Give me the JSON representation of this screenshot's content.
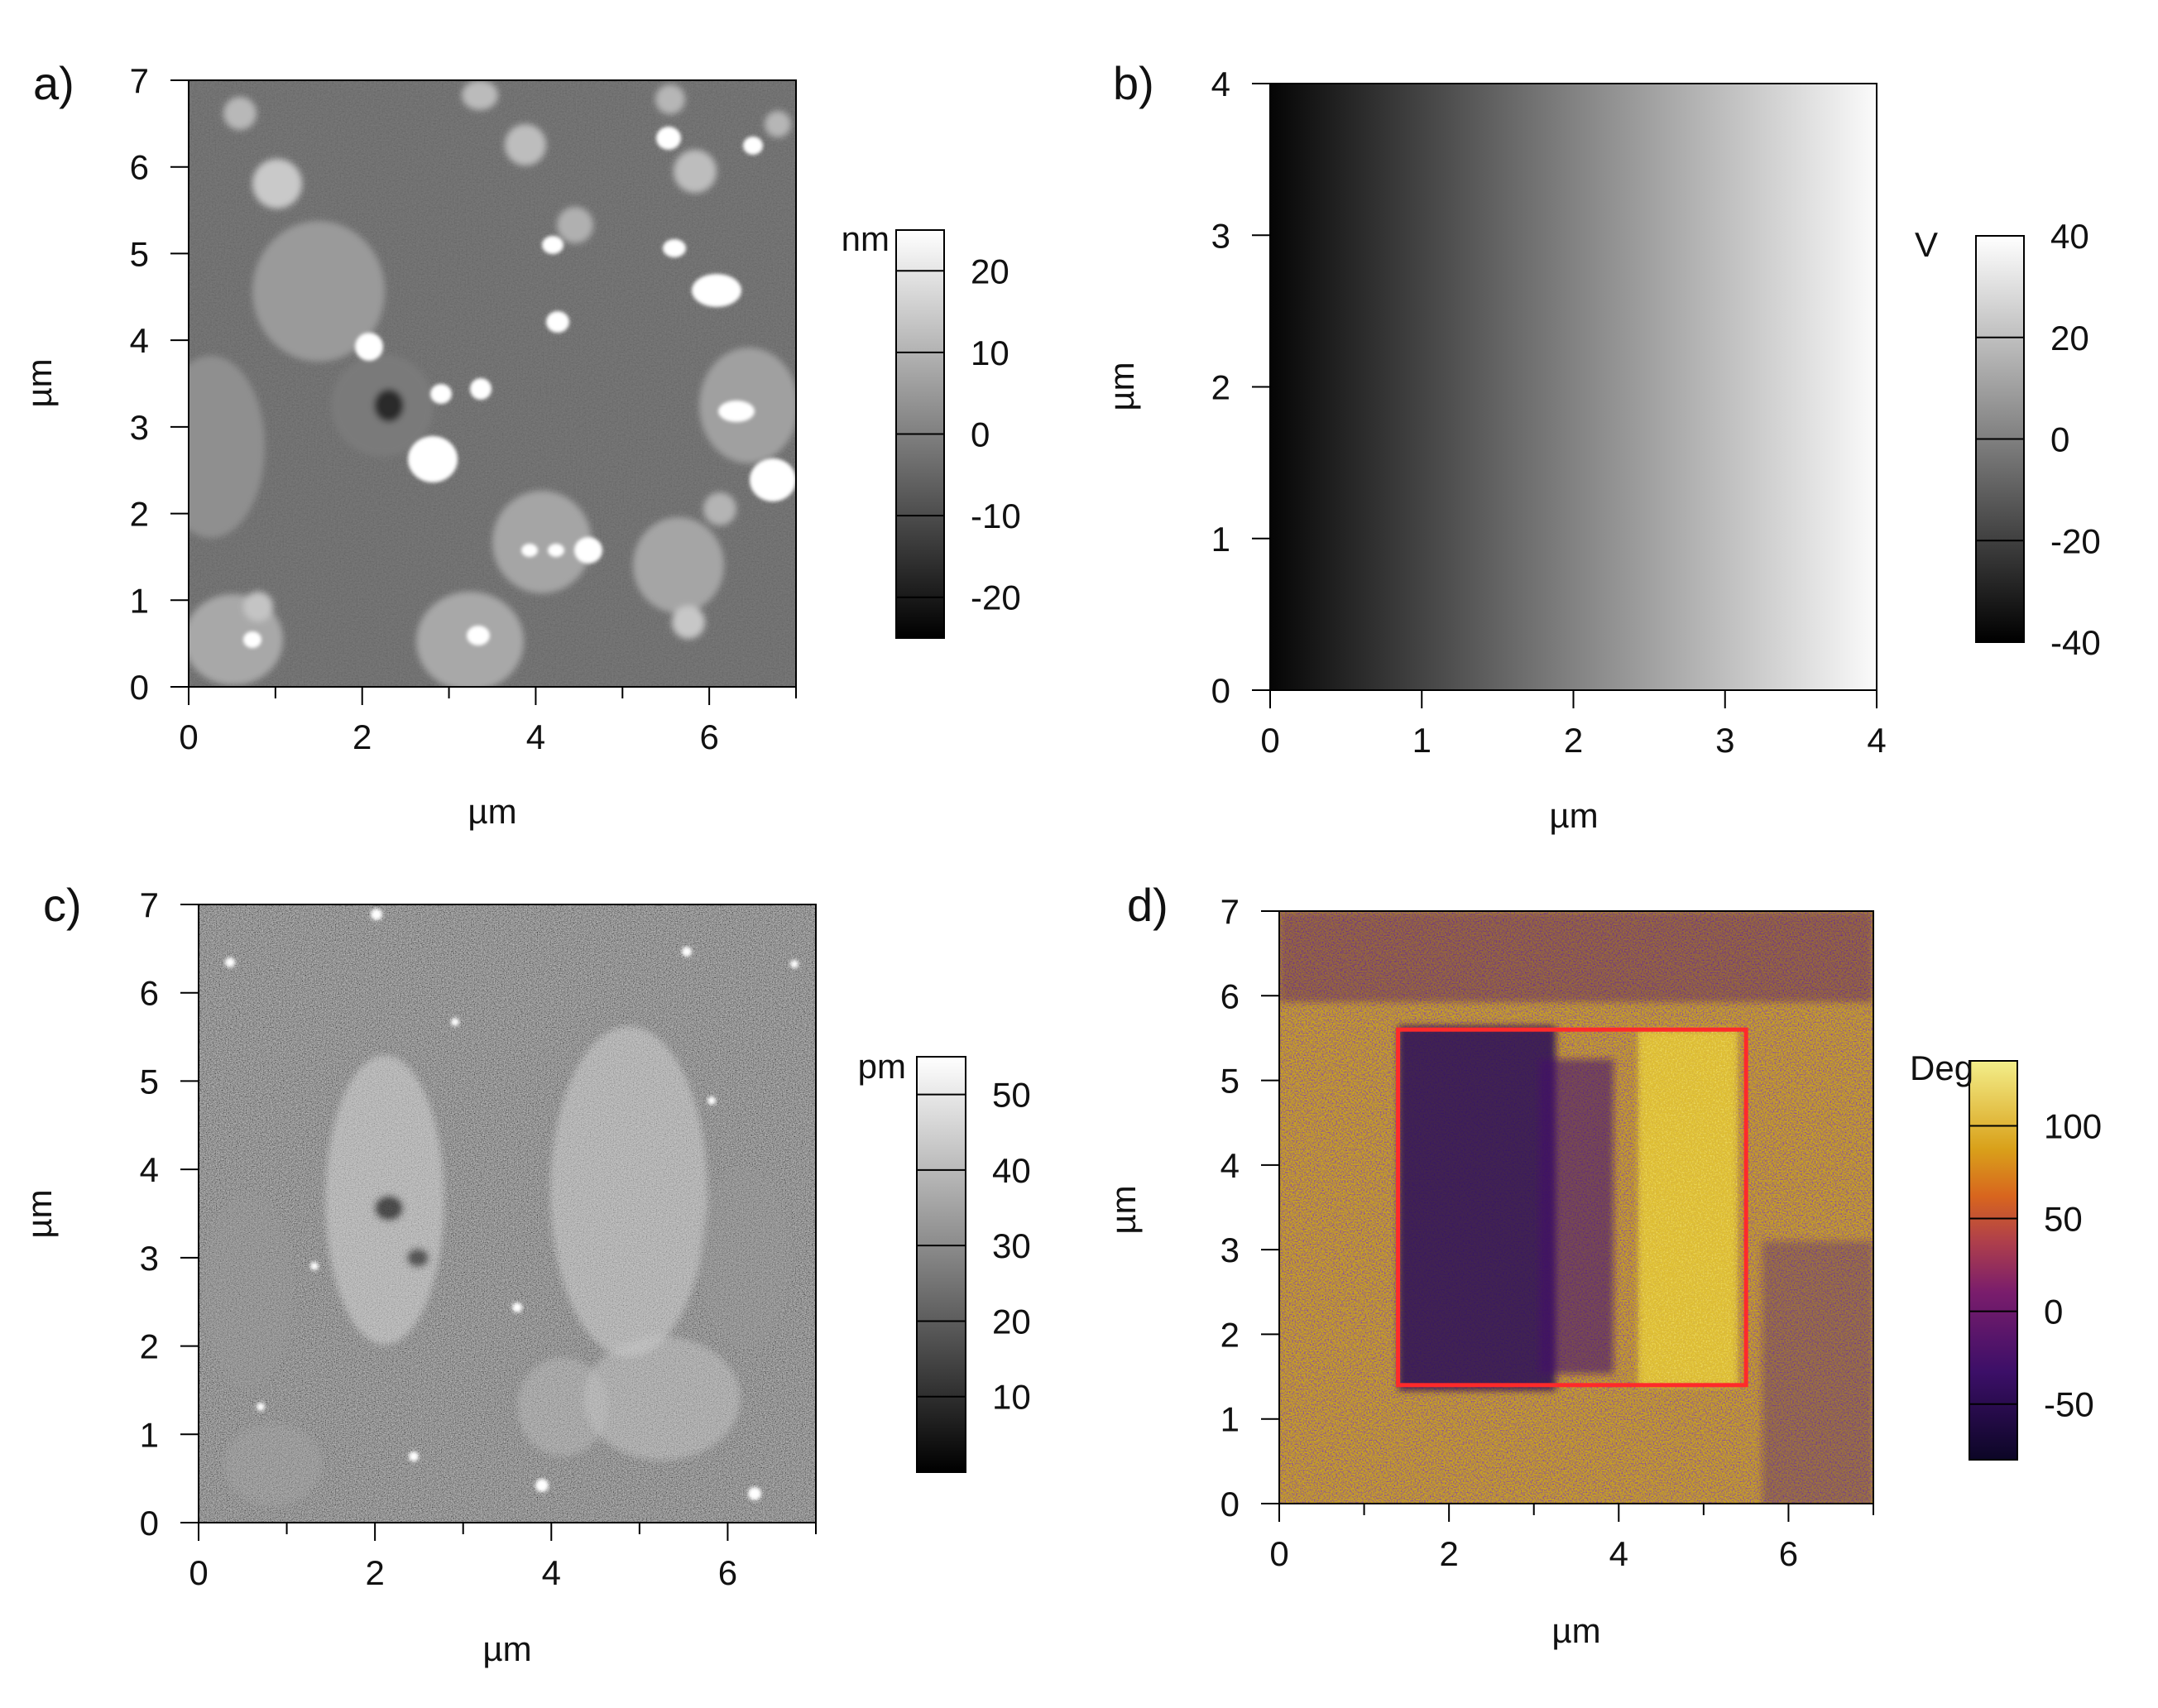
{
  "chart_data": [
    {
      "type": "heatmap",
      "panel_label": "a)",
      "xlabel": "µm",
      "ylabel": "µm",
      "xlim": [
        0,
        7
      ],
      "ylim": [
        0,
        7
      ],
      "x_ticks": [
        0,
        2,
        4,
        6
      ],
      "y_ticks": [
        0,
        1,
        2,
        3,
        4,
        5,
        6,
        7
      ],
      "colormap": "grayscale",
      "colorbar": {
        "unit": "nm",
        "range": [
          -25,
          25
        ],
        "ticks": [
          20,
          10,
          0,
          -10,
          -20
        ],
        "tick_labels": [
          "20",
          "10",
          "0",
          "-10",
          "-20"
        ]
      }
    },
    {
      "type": "heatmap",
      "panel_label": "b)",
      "xlabel": "µm",
      "ylabel": "µm",
      "xlim": [
        0,
        4
      ],
      "ylim": [
        0,
        4
      ],
      "x_ticks": [
        0,
        1,
        2,
        3,
        4
      ],
      "y_ticks": [
        0,
        1,
        2,
        3,
        4
      ],
      "colormap": "grayscale",
      "gradient": "linear from -40 V at x=0 to 40 V at x=4",
      "colorbar": {
        "unit": "V",
        "range": [
          -40,
          40
        ],
        "ticks": [
          40,
          20,
          0,
          -20,
          -40
        ],
        "tick_labels": [
          "40",
          "20",
          "0",
          "-20",
          "-40"
        ]
      }
    },
    {
      "type": "heatmap",
      "panel_label": "c)",
      "xlabel": "µm",
      "ylabel": "µm",
      "xlim": [
        0,
        7
      ],
      "ylim": [
        0,
        7
      ],
      "x_ticks": [
        0,
        2,
        4,
        6
      ],
      "y_ticks": [
        0,
        1,
        2,
        3,
        4,
        5,
        6,
        7
      ],
      "colormap": "grayscale",
      "colorbar": {
        "unit": "pm",
        "range": [
          0,
          55
        ],
        "ticks": [
          50,
          40,
          30,
          20,
          10
        ],
        "tick_labels": [
          "50",
          "40",
          "30",
          "20",
          "10"
        ]
      }
    },
    {
      "type": "heatmap",
      "panel_label": "d)",
      "xlabel": "µm",
      "ylabel": "µm",
      "xlim": [
        0,
        7
      ],
      "ylim": [
        0,
        7
      ],
      "x_ticks": [
        0,
        2,
        4,
        6
      ],
      "y_ticks": [
        0,
        1,
        2,
        3,
        4,
        5,
        6,
        7
      ],
      "colormap": "inferno-like (dark purple to yellow)",
      "highlight_box": {
        "x_range": [
          1.4,
          5.5
        ],
        "y_range": [
          1.4,
          5.6
        ],
        "color": "#ff2a2a"
      },
      "colorbar": {
        "unit": "Deg",
        "range": [
          -80,
          135
        ],
        "ticks": [
          100,
          50,
          0,
          -50
        ],
        "tick_labels": [
          "100",
          "50",
          "0",
          "-50"
        ]
      }
    }
  ]
}
